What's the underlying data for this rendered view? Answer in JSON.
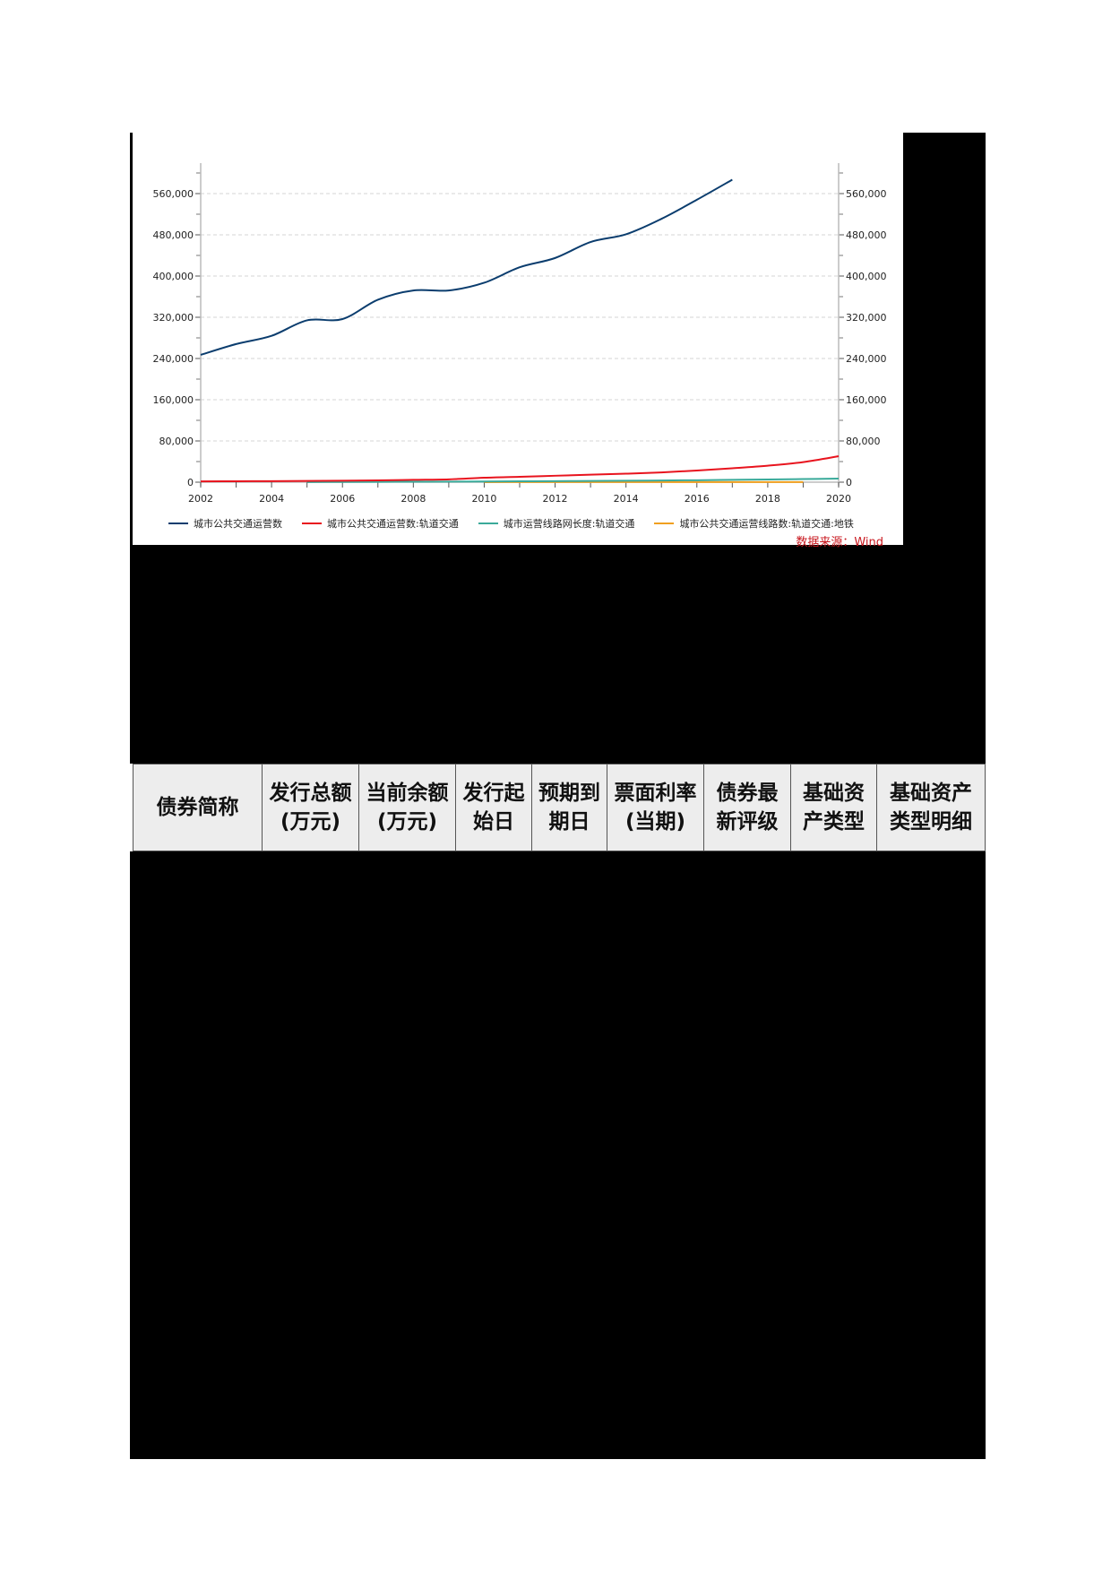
{
  "chart_data": {
    "type": "line",
    "title": "",
    "xlabel": "",
    "ylabel": "",
    "x": [
      2002,
      2003,
      2004,
      2005,
      2006,
      2007,
      2008,
      2009,
      2010,
      2011,
      2012,
      2013,
      2014,
      2015,
      2016,
      2017,
      2018,
      2019,
      2020
    ],
    "xticks": [
      "2002",
      "2004",
      "2006",
      "2008",
      "2010",
      "2012",
      "2014",
      "2016",
      "2018",
      "2020"
    ],
    "xlim": [
      2002,
      2020
    ],
    "ylim": [
      0,
      600000
    ],
    "yticks_left": [
      "0",
      "80,000",
      "160,000",
      "240,000",
      "320,000",
      "400,000",
      "480,000",
      "560,000"
    ],
    "yticks_right": [
      "0",
      "80,000",
      "160,000",
      "240,000",
      "320,000",
      "400,000",
      "480,000",
      "560,000"
    ],
    "grid": true,
    "legend_position": "bottom",
    "series": [
      {
        "name": "城市公共交通运营数",
        "color": "#0b3d6e",
        "values": [
          247000,
          268000,
          284000,
          314000,
          316500,
          354000,
          372000,
          372000,
          387000,
          417000,
          435000,
          466000,
          481000,
          511000,
          548000,
          587000,
          null,
          null,
          null
        ]
      },
      {
        "name": "城市公共交通运营数:轨道交通",
        "color": "#e8141e",
        "values": [
          1500,
          1800,
          2000,
          2300,
          2800,
          3500,
          4500,
          5500,
          8700,
          10500,
          12500,
          14500,
          16500,
          19000,
          22600,
          27000,
          32000,
          39000,
          50400
        ]
      },
      {
        "name": "城市运营线路网长度:轨道交通",
        "color": "#3aaa9a",
        "values": [
          null,
          null,
          null,
          300,
          500,
          700,
          900,
          1100,
          1400,
          1700,
          2000,
          2400,
          2800,
          3300,
          3800,
          4500,
          5200,
          6000,
          7000
        ]
      },
      {
        "name": "城市公共交通运营线路数:轨道交通:地铁",
        "color": "#f0a020",
        "values": [
          null,
          null,
          null,
          null,
          null,
          null,
          null,
          null,
          100,
          120,
          140,
          160,
          180,
          200,
          220,
          240,
          260,
          280,
          null
        ]
      }
    ],
    "annotations": [
      "数据来源：Wind"
    ]
  },
  "legend": [
    {
      "label": "城市公共交通运营数",
      "color": "#0b3d6e"
    },
    {
      "label": "城市公共交通运营数:轨道交通",
      "color": "#e8141e"
    },
    {
      "label": "城市运营线路网长度:轨道交通",
      "color": "#3aaa9a"
    },
    {
      "label": "城市公共交通运营线路数:轨道交通:地铁",
      "color": "#f0a020"
    }
  ],
  "source_note": "数据来源：Wind",
  "table": {
    "headers": [
      "债券简称",
      "发行总额(万元)",
      "当前余额(万元)",
      "发行起始日",
      "预期到期日",
      "票面利率(当期)",
      "债券最新评级",
      "基础资产类型",
      "基础资产类型明细"
    ]
  }
}
